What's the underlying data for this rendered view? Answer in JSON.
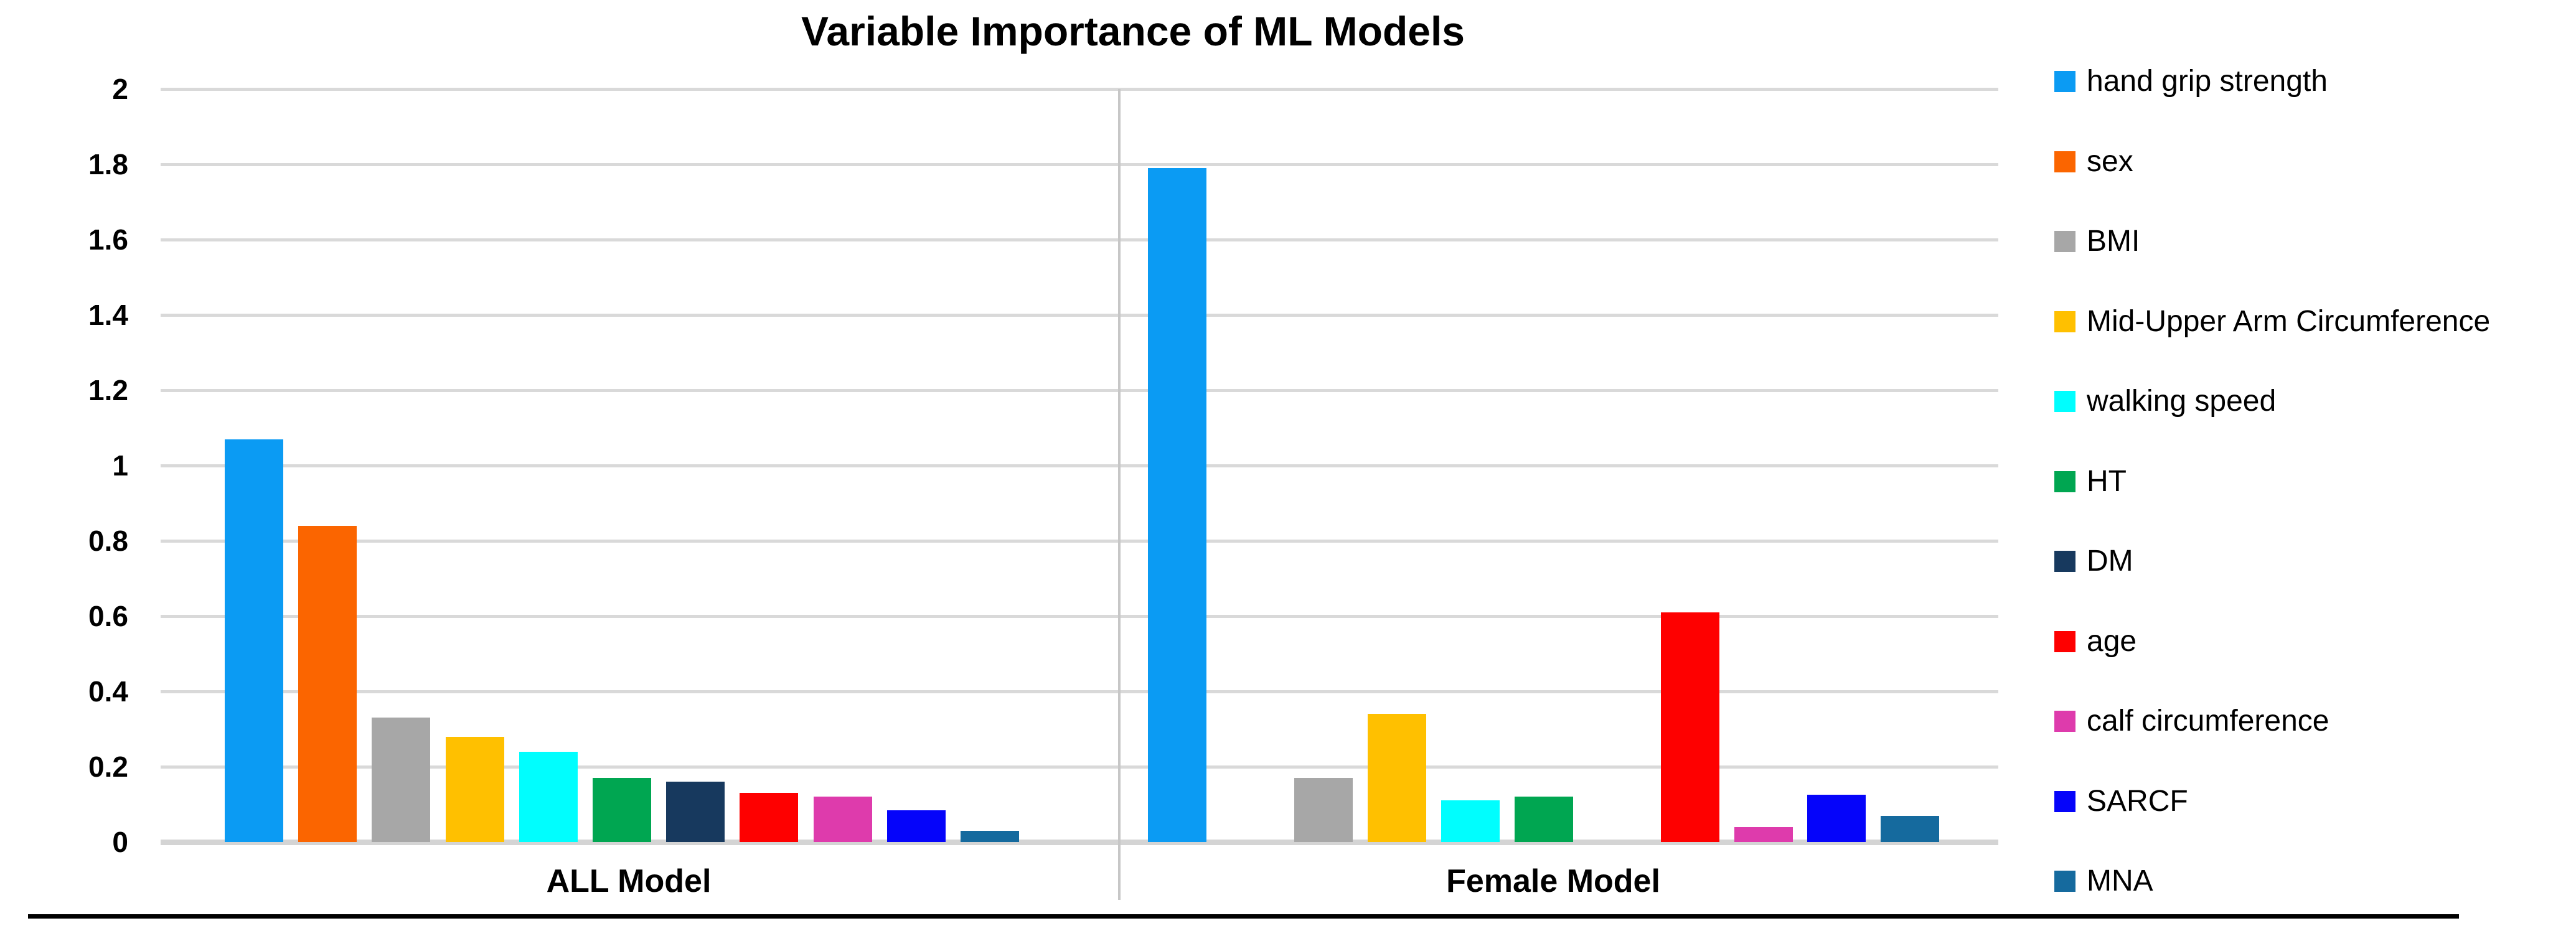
{
  "title": "Variable Importance of ML Models",
  "y_axis": {
    "tick_labels": [
      "2",
      "1.8",
      "1.6",
      "1.4",
      "1.2",
      "1",
      "0.8",
      "0.6",
      "0.4",
      "0.2",
      "0"
    ]
  },
  "chart_data": {
    "type": "bar",
    "title": "Variable Importance of ML Models",
    "xlabel": "",
    "ylabel": "",
    "ylim": [
      0,
      2
    ],
    "y_tick_step": 0.2,
    "grid": true,
    "legend_position": "right",
    "categories": [
      "ALL Model",
      "Female Model"
    ],
    "series": [
      {
        "name": "hand grip strength",
        "color": "#0b9bf3",
        "values": [
          1.07,
          1.79
        ]
      },
      {
        "name": "sex",
        "color": "#fb6500",
        "values": [
          0.84,
          0
        ]
      },
      {
        "name": "BMI",
        "color": "#a7a7a7",
        "values": [
          0.33,
          0.17
        ]
      },
      {
        "name": "Mid-Upper Arm Circumference",
        "color": "#ffc000",
        "values": [
          0.28,
          0.34
        ]
      },
      {
        "name": "walking speed",
        "color": "#00fefe",
        "values": [
          0.24,
          0.11
        ]
      },
      {
        "name": "HT",
        "color": "#00a651",
        "values": [
          0.17,
          0.12
        ]
      },
      {
        "name": "DM",
        "color": "#17395e",
        "values": [
          0.16,
          0
        ]
      },
      {
        "name": "age",
        "color": "#fe0000",
        "values": [
          0.13,
          0.61
        ]
      },
      {
        "name": "calf circumference",
        "color": "#de3bac",
        "values": [
          0.12,
          0.04
        ]
      },
      {
        "name": "SARCF",
        "color": "#0504fa",
        "values": [
          0.085,
          0.125
        ]
      },
      {
        "name": "MNA",
        "color": "#156a9e",
        "values": [
          0.03,
          0.07
        ]
      }
    ]
  }
}
